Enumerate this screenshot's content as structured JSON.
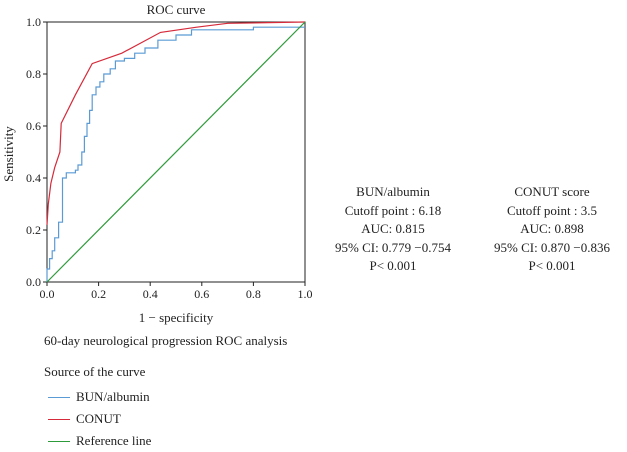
{
  "chart_data": {
    "type": "line",
    "title": "ROC curve",
    "xlabel": "1 − specificity",
    "ylabel": "Sensitivity",
    "xlim": [
      0,
      1
    ],
    "ylim": [
      0,
      1
    ],
    "x_ticks": [
      "0.0",
      "0.2",
      "0.4",
      "0.6",
      "0.8",
      "1.0"
    ],
    "y_ticks": [
      "0.0",
      "0.2",
      "0.4",
      "0.6",
      "0.8",
      "1.0"
    ],
    "grid": false,
    "series": [
      {
        "name": "BUN/albumin",
        "color": "#5b9bd5",
        "points": [
          [
            0,
            0
          ],
          [
            0,
            0.05
          ],
          [
            0.01,
            0.05
          ],
          [
            0.01,
            0.09
          ],
          [
            0.02,
            0.09
          ],
          [
            0.02,
            0.12
          ],
          [
            0.03,
            0.12
          ],
          [
            0.03,
            0.17
          ],
          [
            0.045,
            0.17
          ],
          [
            0.045,
            0.23
          ],
          [
            0.06,
            0.23
          ],
          [
            0.06,
            0.4
          ],
          [
            0.075,
            0.4
          ],
          [
            0.075,
            0.42
          ],
          [
            0.11,
            0.42
          ],
          [
            0.11,
            0.43
          ],
          [
            0.12,
            0.43
          ],
          [
            0.12,
            0.45
          ],
          [
            0.135,
            0.45
          ],
          [
            0.135,
            0.5
          ],
          [
            0.145,
            0.5
          ],
          [
            0.145,
            0.56
          ],
          [
            0.155,
            0.56
          ],
          [
            0.155,
            0.61
          ],
          [
            0.165,
            0.61
          ],
          [
            0.165,
            0.66
          ],
          [
            0.175,
            0.66
          ],
          [
            0.175,
            0.72
          ],
          [
            0.19,
            0.72
          ],
          [
            0.19,
            0.75
          ],
          [
            0.205,
            0.75
          ],
          [
            0.205,
            0.77
          ],
          [
            0.22,
            0.77
          ],
          [
            0.22,
            0.8
          ],
          [
            0.245,
            0.8
          ],
          [
            0.245,
            0.82
          ],
          [
            0.265,
            0.82
          ],
          [
            0.265,
            0.85
          ],
          [
            0.3,
            0.85
          ],
          [
            0.3,
            0.86
          ],
          [
            0.34,
            0.86
          ],
          [
            0.34,
            0.88
          ],
          [
            0.38,
            0.88
          ],
          [
            0.38,
            0.9
          ],
          [
            0.43,
            0.9
          ],
          [
            0.43,
            0.93
          ],
          [
            0.5,
            0.93
          ],
          [
            0.5,
            0.95
          ],
          [
            0.56,
            0.95
          ],
          [
            0.56,
            0.97
          ],
          [
            0.8,
            0.97
          ],
          [
            0.8,
            0.98
          ],
          [
            1,
            0.98
          ]
        ]
      },
      {
        "name": "CONUT",
        "color": "#d62a3a",
        "points": [
          [
            0,
            0.22
          ],
          [
            0.005,
            0.3
          ],
          [
            0.015,
            0.38
          ],
          [
            0.03,
            0.44
          ],
          [
            0.05,
            0.5
          ],
          [
            0.055,
            0.61
          ],
          [
            0.11,
            0.72
          ],
          [
            0.175,
            0.84
          ],
          [
            0.29,
            0.88
          ],
          [
            0.44,
            0.96
          ],
          [
            0.58,
            0.98
          ],
          [
            0.7,
            0.995
          ],
          [
            1,
            1
          ]
        ]
      },
      {
        "name": "Reference line",
        "color": "#2e9b3a",
        "points": [
          [
            0,
            0
          ],
          [
            1,
            1
          ]
        ]
      }
    ]
  },
  "subtitle": "60-day neurological progression ROC analysis",
  "legend": {
    "title": "Source of the curve",
    "items": [
      "BUN/albumin",
      "CONUT",
      "Reference line"
    ]
  },
  "stats": {
    "bun": {
      "name": "BUN/albumin",
      "cutoff": "Cutoff point : 6.18",
      "auc": "AUC: 0.815",
      "ci": "95% CI: 0.779 −0.754",
      "p": "P< 0.001"
    },
    "conut": {
      "name": "CONUT score",
      "cutoff": "Cutoff point : 3.5",
      "auc": "AUC: 0.898",
      "ci": "95% CI: 0.870 −0.836",
      "p": "P< 0.001"
    }
  }
}
